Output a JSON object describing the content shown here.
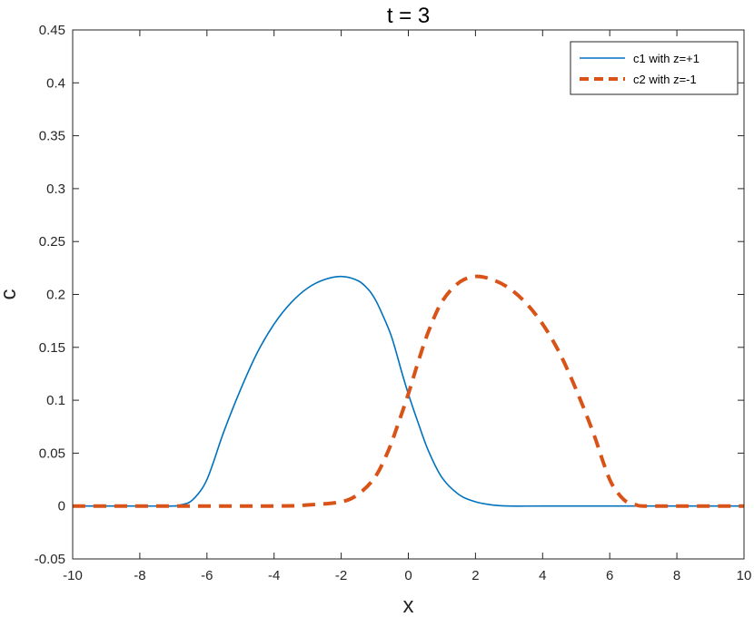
{
  "chart_data": {
    "type": "line",
    "title": "t = 3",
    "xlabel": "x",
    "ylabel": "c",
    "xlim": [
      -10,
      10
    ],
    "ylim": [
      -0.05,
      0.45
    ],
    "xticks": [
      -10,
      -8,
      -6,
      -4,
      -2,
      0,
      2,
      4,
      6,
      8,
      10
    ],
    "yticks": [
      -0.05,
      0,
      0.05,
      0.1,
      0.15,
      0.2,
      0.25,
      0.3,
      0.35,
      0.4,
      0.45
    ],
    "legend_position": "top-right",
    "grid": false,
    "series": [
      {
        "name": "c1 with z=+1",
        "color": "#0072BD",
        "line_style": "solid",
        "x": [
          -10,
          -8,
          -7,
          -6.8,
          -6.5,
          -6.2,
          -6,
          -5.8,
          -5.5,
          -5,
          -4.5,
          -4,
          -3.5,
          -3,
          -2.5,
          -2,
          -1.5,
          -1.2,
          -1,
          -0.8,
          -0.5,
          -0.2,
          0,
          0.3,
          0.6,
          1,
          1.5,
          2,
          2.5,
          3,
          4,
          6,
          8,
          10
        ],
        "y": [
          0,
          0,
          0,
          0.001,
          0.004,
          0.014,
          0.025,
          0.042,
          0.07,
          0.11,
          0.145,
          0.172,
          0.192,
          0.206,
          0.214,
          0.217,
          0.213,
          0.205,
          0.196,
          0.183,
          0.16,
          0.127,
          0.106,
          0.078,
          0.052,
          0.027,
          0.011,
          0.004,
          0.001,
          0,
          0,
          0,
          0,
          0
        ]
      },
      {
        "name": "c2 with z=-1",
        "color": "#D95319",
        "line_style": "dashed",
        "x": [
          -10,
          -8,
          -4,
          -3,
          -2,
          -1.5,
          -1,
          -0.6,
          -0.3,
          0,
          0.3,
          0.6,
          1,
          1.5,
          2,
          2.5,
          3,
          3.5,
          4,
          4.5,
          5,
          5.5,
          5.8,
          6,
          6.2,
          6.5,
          6.8,
          7,
          8,
          10
        ],
        "y": [
          0,
          0,
          0,
          0.001,
          0.004,
          0.011,
          0.027,
          0.052,
          0.078,
          0.106,
          0.137,
          0.165,
          0.193,
          0.211,
          0.217,
          0.214,
          0.206,
          0.192,
          0.172,
          0.145,
          0.11,
          0.07,
          0.042,
          0.025,
          0.014,
          0.004,
          0.001,
          0,
          0,
          0
        ]
      }
    ]
  }
}
